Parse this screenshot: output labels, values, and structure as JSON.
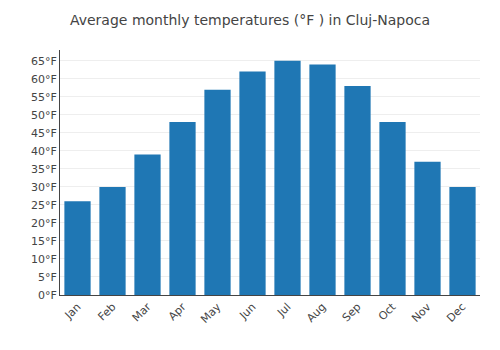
{
  "chart_data": {
    "type": "bar",
    "title": "Average monthly temperatures (°F ) in Cluj-Napoca",
    "categories": [
      "Jan",
      "Feb",
      "Mar",
      "Apr",
      "May",
      "Jun",
      "Jul",
      "Aug",
      "Sep",
      "Oct",
      "Nov",
      "Dec"
    ],
    "values": [
      26,
      30,
      39,
      48,
      57,
      62,
      65,
      64,
      58,
      48,
      37,
      30
    ],
    "ylim": [
      0,
      68
    ],
    "yticks": [
      {
        "value": 0,
        "label": "0°F"
      },
      {
        "value": 5,
        "label": "5°F"
      },
      {
        "value": 10,
        "label": "10°F"
      },
      {
        "value": 15,
        "label": "15°F"
      },
      {
        "value": 20,
        "label": "20°F"
      },
      {
        "value": 25,
        "label": "25°F"
      },
      {
        "value": 30,
        "label": "30°F"
      },
      {
        "value": 35,
        "label": "35°F"
      },
      {
        "value": 40,
        "label": "40°F"
      },
      {
        "value": 45,
        "label": "45°F"
      },
      {
        "value": 50,
        "label": "50°F"
      },
      {
        "value": 55,
        "label": "55°F"
      },
      {
        "value": 60,
        "label": "60°F"
      },
      {
        "value": 65,
        "label": "65°F"
      }
    ],
    "grid": true
  }
}
